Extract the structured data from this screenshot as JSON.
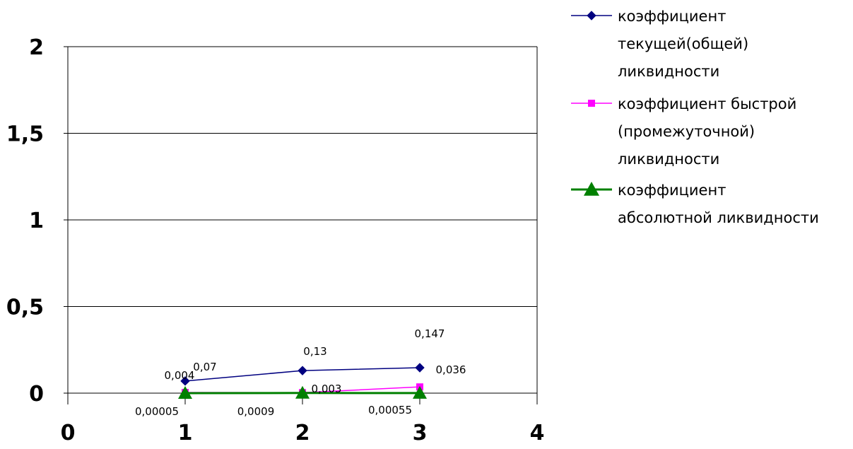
{
  "chart_data": {
    "type": "line",
    "xlim": [
      0,
      4
    ],
    "ylim": [
      0,
      2
    ],
    "x_ticks": [
      "0",
      "1",
      "2",
      "3",
      "4"
    ],
    "y_ticks": [
      "0",
      "0,5",
      "1",
      "1,5",
      "2"
    ],
    "grid": "horizontal",
    "legend_position": "right",
    "series": [
      {
        "name_lines": [
          "коэффициент",
          "текущей(общей)",
          "ликвидности"
        ],
        "color": "#000080",
        "marker": "diamond",
        "x": [
          1,
          2,
          3
        ],
        "values": [
          0.07,
          0.13,
          0.147
        ],
        "labels": [
          "0,07",
          "0,13",
          "0,147"
        ]
      },
      {
        "name_lines": [
          "коэффициент быстрой",
          "(промежуточной)",
          "ликвидности"
        ],
        "color": "#ff00ff",
        "marker": "square",
        "x": [
          1,
          2,
          3
        ],
        "values": [
          0.004,
          0.003,
          0.036
        ],
        "labels": [
          "0,004",
          "0,003",
          "0,036"
        ]
      },
      {
        "name_lines": [
          "коэффициент",
          "абсолютной ликвидности"
        ],
        "color": "#008000",
        "marker": "triangle",
        "x": [
          1,
          2,
          3
        ],
        "values": [
          5e-05,
          0.0009,
          0.00055
        ],
        "labels": [
          "0,00005",
          "0,0009",
          "0,00055"
        ]
      }
    ]
  }
}
